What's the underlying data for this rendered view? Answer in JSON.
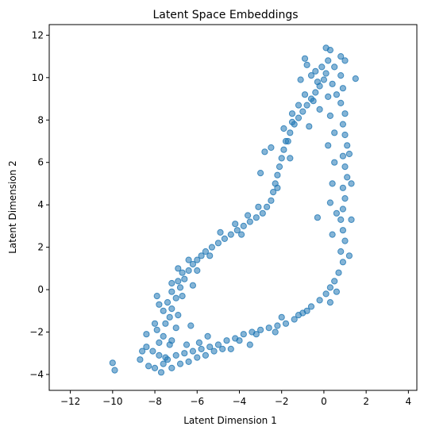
{
  "chart_data": {
    "type": "scatter",
    "title": "Latent Space Embeddings",
    "xlabel": "Latent Dimension 1",
    "ylabel": "Latent Dimension 2",
    "xlim": [
      -13,
      4.4
    ],
    "ylim": [
      -4.75,
      12.5
    ],
    "xticks": [
      -12,
      -10,
      -8,
      -6,
      -4,
      -2,
      0,
      2,
      4
    ],
    "yticks": [
      -4,
      -2,
      0,
      2,
      4,
      6,
      8,
      10,
      12
    ],
    "grid": false,
    "point_color": "#1f77b4",
    "point_alpha": 0.55,
    "series": [
      {
        "points": [
          [
            -10.0,
            -3.45
          ],
          [
            -9.9,
            -3.8
          ],
          [
            -8.7,
            -3.3
          ],
          [
            -8.3,
            -3.6
          ],
          [
            -8.0,
            -3.7
          ],
          [
            -8.4,
            -2.7
          ],
          [
            -8.1,
            -2.9
          ],
          [
            -7.8,
            -3.1
          ],
          [
            -7.5,
            -3.2
          ],
          [
            -7.8,
            -2.5
          ],
          [
            -7.6,
            -2.2
          ],
          [
            -7.3,
            -2.6
          ],
          [
            -7.9,
            -1.9
          ],
          [
            -7.5,
            -1.6
          ],
          [
            -7.3,
            -1.3
          ],
          [
            -7.6,
            -1.0
          ],
          [
            -7.2,
            -0.9
          ],
          [
            -7.4,
            -0.6
          ],
          [
            -7.0,
            -0.4
          ],
          [
            -7.2,
            -0.1
          ],
          [
            -6.8,
            0.1
          ],
          [
            -6.9,
            0.4
          ],
          [
            -6.6,
            0.5
          ],
          [
            -6.7,
            0.8
          ],
          [
            -6.4,
            0.9
          ],
          [
            -6.2,
            1.2
          ],
          [
            -6.0,
            1.4
          ],
          [
            -5.8,
            1.6
          ],
          [
            -5.6,
            1.8
          ],
          [
            -5.3,
            2.0
          ],
          [
            -5.0,
            2.2
          ],
          [
            -4.7,
            2.4
          ],
          [
            -4.4,
            2.6
          ],
          [
            -4.1,
            2.8
          ],
          [
            -3.8,
            3.0
          ],
          [
            -3.5,
            3.2
          ],
          [
            -3.2,
            3.4
          ],
          [
            -2.9,
            3.6
          ],
          [
            -2.7,
            3.9
          ],
          [
            -2.5,
            4.2
          ],
          [
            -2.4,
            4.6
          ],
          [
            -2.3,
            5.0
          ],
          [
            -2.2,
            5.4
          ],
          [
            -2.1,
            5.8
          ],
          [
            -2.0,
            6.2
          ],
          [
            -1.9,
            6.6
          ],
          [
            -1.8,
            7.0
          ],
          [
            -1.6,
            7.4
          ],
          [
            -1.4,
            7.8
          ],
          [
            -1.2,
            8.1
          ],
          [
            -1.0,
            8.4
          ],
          [
            -0.8,
            8.7
          ],
          [
            -0.6,
            9.0
          ],
          [
            -0.4,
            9.3
          ],
          [
            -0.2,
            9.6
          ],
          [
            0.0,
            9.9
          ],
          [
            0.1,
            10.2
          ],
          [
            -0.1,
            10.5
          ],
          [
            0.2,
            10.8
          ],
          [
            0.1,
            11.4
          ],
          [
            0.3,
            11.3
          ],
          [
            -0.8,
            10.6
          ],
          [
            -0.4,
            10.3
          ],
          [
            0.5,
            10.5
          ],
          [
            0.8,
            10.1
          ],
          [
            1.5,
            9.95
          ],
          [
            0.9,
            9.5
          ],
          [
            0.6,
            9.2
          ],
          [
            0.8,
            8.8
          ],
          [
            1.0,
            8.3
          ],
          [
            0.9,
            7.8
          ],
          [
            1.0,
            7.3
          ],
          [
            1.1,
            6.8
          ],
          [
            0.9,
            6.3
          ],
          [
            1.0,
            5.8
          ],
          [
            1.1,
            5.3
          ],
          [
            0.9,
            4.8
          ],
          [
            1.0,
            4.3
          ],
          [
            0.9,
            3.8
          ],
          [
            0.8,
            3.3
          ],
          [
            0.9,
            2.8
          ],
          [
            1.0,
            2.3
          ],
          [
            0.8,
            1.8
          ],
          [
            0.9,
            1.3
          ],
          [
            0.7,
            0.8
          ],
          [
            0.5,
            0.4
          ],
          [
            0.3,
            0.1
          ],
          [
            0.1,
            -0.2
          ],
          [
            -0.2,
            -0.5
          ],
          [
            -0.6,
            -0.8
          ],
          [
            -1.0,
            -1.1
          ],
          [
            -1.4,
            -1.4
          ],
          [
            -1.8,
            -1.6
          ],
          [
            -2.2,
            -1.7
          ],
          [
            -2.6,
            -1.8
          ],
          [
            -3.0,
            -1.9
          ],
          [
            -3.4,
            -2.0
          ],
          [
            -3.8,
            -2.1
          ],
          [
            -4.2,
            -2.3
          ],
          [
            -4.6,
            -2.4
          ],
          [
            -5.0,
            -2.6
          ],
          [
            -5.4,
            -2.7
          ],
          [
            -5.8,
            -2.8
          ],
          [
            -6.2,
            -2.9
          ],
          [
            -6.6,
            -3.0
          ],
          [
            -7.0,
            -3.1
          ],
          [
            -7.4,
            -3.3
          ],
          [
            -7.6,
            -3.5
          ],
          [
            -7.2,
            -3.7
          ],
          [
            -6.8,
            -3.5
          ],
          [
            -6.4,
            -3.4
          ],
          [
            -6.0,
            -3.2
          ],
          [
            -5.6,
            -3.1
          ],
          [
            -5.2,
            -2.9
          ],
          [
            -4.8,
            -2.8
          ],
          [
            -1.2,
            8.7
          ],
          [
            -0.9,
            9.2
          ],
          [
            -0.5,
            8.9
          ],
          [
            -0.2,
            8.5
          ],
          [
            0.2,
            9.1
          ],
          [
            -0.3,
            9.8
          ],
          [
            0.4,
            9.7
          ],
          [
            -1.5,
            8.3
          ],
          [
            -1.9,
            7.6
          ],
          [
            -2.5,
            6.7
          ],
          [
            -1.6,
            6.2
          ],
          [
            -1.7,
            7.0
          ],
          [
            -0.7,
            7.7
          ],
          [
            0.3,
            8.2
          ],
          [
            0.5,
            7.4
          ],
          [
            -2.8,
            6.5
          ],
          [
            -3.0,
            5.5
          ],
          [
            -2.2,
            4.8
          ],
          [
            -3.6,
            3.5
          ],
          [
            -3.9,
            2.6
          ],
          [
            -5.4,
            1.6
          ],
          [
            -6.4,
            1.4
          ],
          [
            -6.9,
            1.0
          ],
          [
            -7.2,
            0.3
          ],
          [
            -7.8,
            -0.7
          ],
          [
            -8.0,
            -1.6
          ],
          [
            -8.4,
            -2.1
          ],
          [
            -8.6,
            -2.9
          ],
          [
            -7.0,
            -1.8
          ],
          [
            -7.2,
            -2.4
          ],
          [
            -6.5,
            -2.6
          ],
          [
            -5.9,
            -2.5
          ],
          [
            -4.0,
            -2.4
          ],
          [
            -3.2,
            -2.1
          ],
          [
            -2.3,
            -2.0
          ],
          [
            -1.2,
            -1.2
          ],
          [
            0.6,
            -0.1
          ],
          [
            0.3,
            -0.6
          ],
          [
            1.2,
            1.6
          ],
          [
            0.4,
            2.6
          ],
          [
            0.6,
            3.6
          ],
          [
            0.3,
            4.1
          ],
          [
            0.4,
            5.0
          ],
          [
            0.5,
            6.0
          ],
          [
            0.2,
            6.8
          ],
          [
            1.2,
            6.4
          ],
          [
            1.3,
            5.0
          ],
          [
            1.3,
            3.3
          ],
          [
            -0.3,
            3.4
          ],
          [
            -1.5,
            7.9
          ],
          [
            -1.1,
            9.9
          ],
          [
            -0.6,
            10.1
          ],
          [
            0.8,
            11.0
          ],
          [
            1.0,
            10.8
          ],
          [
            -0.9,
            10.9
          ],
          [
            -6.2,
            0.2
          ],
          [
            -6.7,
            -0.3
          ],
          [
            -6.9,
            -1.2
          ],
          [
            -6.3,
            -1.7
          ],
          [
            -5.5,
            -2.2
          ],
          [
            -4.4,
            -2.8
          ],
          [
            -3.5,
            -2.6
          ],
          [
            -2.0,
            -1.3
          ],
          [
            -0.8,
            -1.0
          ],
          [
            -7.7,
            -3.9
          ],
          [
            -7.9,
            -0.3
          ],
          [
            -6.0,
            0.9
          ],
          [
            -4.9,
            2.7
          ],
          [
            -4.2,
            3.1
          ],
          [
            -3.1,
            3.9
          ]
        ]
      }
    ]
  }
}
